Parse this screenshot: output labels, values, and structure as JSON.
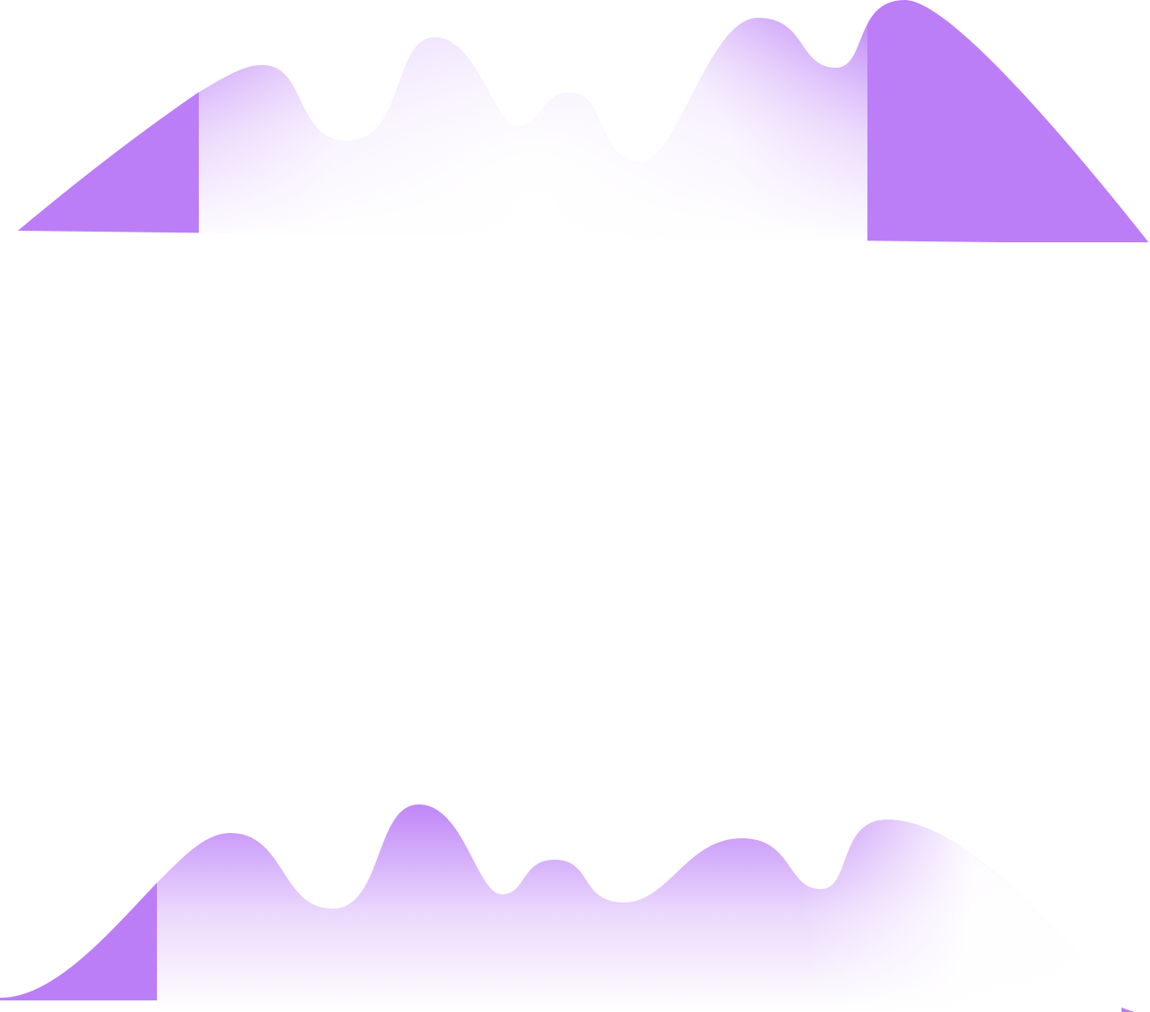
{
  "colors": {
    "background": "#ffffff",
    "accent": "#bb7ef7"
  }
}
